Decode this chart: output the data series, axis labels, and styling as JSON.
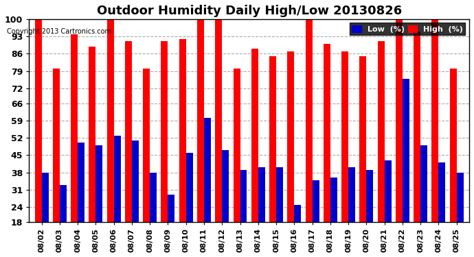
{
  "title": "Outdoor Humidity Daily High/Low 20130826",
  "copyright": "Copyright 2013 Cartronics.com",
  "dates": [
    "08/02",
    "08/03",
    "08/04",
    "08/05",
    "08/06",
    "08/07",
    "08/08",
    "08/09",
    "08/10",
    "08/11",
    "08/12",
    "08/13",
    "08/14",
    "08/15",
    "08/16",
    "08/17",
    "08/18",
    "08/19",
    "08/20",
    "08/21",
    "08/22",
    "08/23",
    "08/24",
    "08/25"
  ],
  "high": [
    100,
    80,
    94,
    89,
    100,
    91,
    80,
    91,
    92,
    100,
    100,
    80,
    88,
    85,
    87,
    100,
    90,
    87,
    85,
    91,
    100,
    95,
    100,
    80
  ],
  "low": [
    38,
    33,
    50,
    49,
    53,
    51,
    38,
    29,
    46,
    60,
    47,
    39,
    40,
    40,
    25,
    35,
    36,
    40,
    39,
    43,
    76,
    49,
    42,
    38
  ],
  "ylim": [
    18,
    100
  ],
  "yticks": [
    18,
    24,
    31,
    38,
    45,
    52,
    59,
    66,
    72,
    79,
    86,
    93,
    100
  ],
  "bar_width": 0.38,
  "high_color": "#ff0000",
  "low_color": "#0000cc",
  "bg_color": "#ffffff",
  "grid_color": "#aaaaaa",
  "title_fontsize": 13,
  "legend_label_low": "Low  (%)",
  "legend_label_high": "High  (%)",
  "fig_width": 6.9,
  "fig_height": 3.75,
  "dpi": 100
}
